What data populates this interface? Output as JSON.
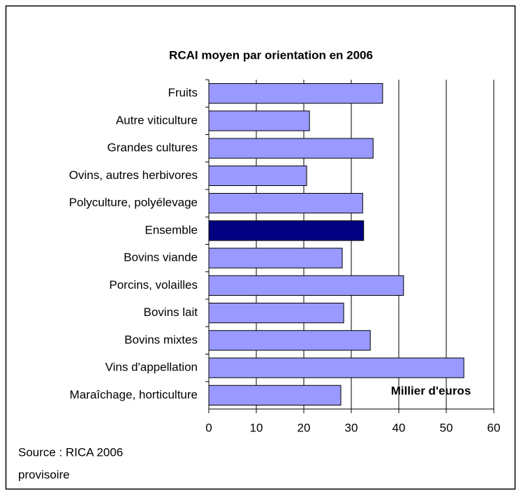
{
  "chart_data": {
    "type": "barh",
    "title": "RCAI moyen par orientation en 2006",
    "categories": [
      "Fruits",
      "Autre viticulture",
      "Grandes cultures",
      "Ovins, autres herbivores",
      "Polyculture, polyélevage",
      "Ensemble",
      "Bovins viande",
      "Porcins, volailles",
      "Bovins lait",
      "Bovins mixtes",
      "Vins d'appellation",
      "Maraîchage, horticulture"
    ],
    "values": [
      36.6,
      21.2,
      34.6,
      20.6,
      32.4,
      32.6,
      28.1,
      41.0,
      28.4,
      34.0,
      53.7,
      27.8
    ],
    "colors": [
      "#9999ff",
      "#9999ff",
      "#9999ff",
      "#9999ff",
      "#9999ff",
      "#000080",
      "#9999ff",
      "#9999ff",
      "#9999ff",
      "#9999ff",
      "#9999ff",
      "#9999ff"
    ],
    "xlim": [
      0,
      60
    ],
    "xticks": [
      0,
      10,
      20,
      30,
      40,
      50,
      60
    ],
    "grid": true,
    "annotation": "Millier d'euros",
    "source": [
      "Source : RICA 2006",
      "provisoire"
    ]
  }
}
